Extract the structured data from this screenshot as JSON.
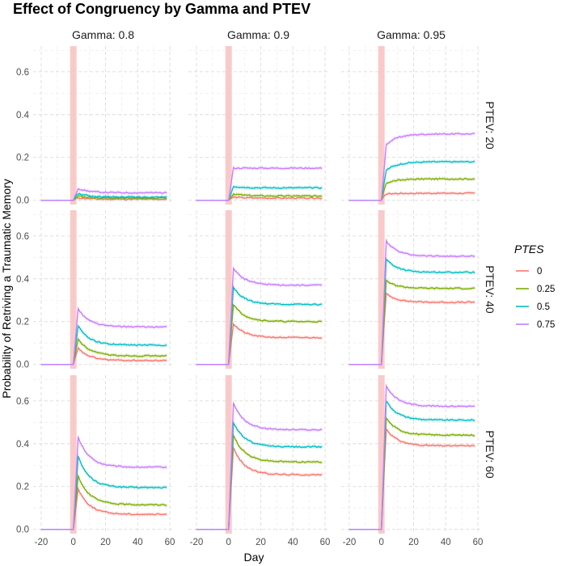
{
  "chart_data": {
    "type": "line",
    "title": "Effect of Congruency by Gamma and PTEV",
    "xlabel": "Day",
    "ylabel": "Probability of Retriving a Traumatic Memory",
    "xlim": [
      -25,
      62
    ],
    "ylim": [
      -0.02,
      0.72
    ],
    "x_ticks": [
      -20,
      0,
      20,
      40,
      60
    ],
    "y_ticks": [
      0.0,
      0.2,
      0.4,
      0.6
    ],
    "x_tick_labels": [
      "-20",
      "0",
      "20",
      "40",
      "60"
    ],
    "y_tick_labels": [
      "0.0",
      "0.2",
      "0.4",
      "0.6"
    ],
    "grid": true,
    "highlight_band": {
      "x": [
        -2,
        2
      ],
      "color": "#f8c4c4"
    },
    "facet_columns": [
      "Gamma: 0.8",
      "Gamma: 0.9",
      "Gamma: 0.95"
    ],
    "facet_rows": [
      "PTEV: 20",
      "PTEV: 40",
      "PTEV: 60"
    ],
    "legend": {
      "title": "PTES",
      "position": "right",
      "entries": [
        "0",
        "0.25",
        "0.5",
        "0.75"
      ]
    },
    "series_colors": [
      "#F8766D",
      "#7CAE00",
      "#00BFC4",
      "#C77CFF"
    ],
    "x_start": -20,
    "event_day": 0,
    "x_end": 58,
    "panels": [
      {
        "row": 0,
        "col": 0,
        "series": [
          {
            "name": "0",
            "peak": 0.012,
            "plateau": 0.005
          },
          {
            "name": "0.25",
            "peak": 0.02,
            "plateau": 0.01
          },
          {
            "name": "0.5",
            "peak": 0.032,
            "plateau": 0.015
          },
          {
            "name": "0.75",
            "peak": 0.055,
            "plateau": 0.035
          }
        ]
      },
      {
        "row": 0,
        "col": 1,
        "series": [
          {
            "name": "0",
            "peak": 0.015,
            "plateau": 0.01
          },
          {
            "name": "0.25",
            "peak": 0.03,
            "plateau": 0.02
          },
          {
            "name": "0.5",
            "peak": 0.065,
            "plateau": 0.058
          },
          {
            "name": "0.75",
            "peak": 0.15,
            "plateau": 0.15
          }
        ]
      },
      {
        "row": 0,
        "col": 2,
        "series": [
          {
            "name": "0",
            "peak": 0.03,
            "plateau": 0.033
          },
          {
            "name": "0.25",
            "peak": 0.08,
            "plateau": 0.1
          },
          {
            "name": "0.5",
            "peak": 0.14,
            "plateau": 0.18
          },
          {
            "name": "0.75",
            "peak": 0.26,
            "plateau": 0.31
          }
        ]
      },
      {
        "row": 1,
        "col": 0,
        "series": [
          {
            "name": "0",
            "peak": 0.075,
            "plateau": 0.018
          },
          {
            "name": "0.25",
            "peak": 0.12,
            "plateau": 0.04
          },
          {
            "name": "0.5",
            "peak": 0.18,
            "plateau": 0.09
          },
          {
            "name": "0.75",
            "peak": 0.26,
            "plateau": 0.175
          }
        ]
      },
      {
        "row": 1,
        "col": 1,
        "series": [
          {
            "name": "0",
            "peak": 0.19,
            "plateau": 0.125
          },
          {
            "name": "0.25",
            "peak": 0.28,
            "plateau": 0.2
          },
          {
            "name": "0.5",
            "peak": 0.36,
            "plateau": 0.28
          },
          {
            "name": "0.75",
            "peak": 0.45,
            "plateau": 0.37
          }
        ]
      },
      {
        "row": 1,
        "col": 2,
        "series": [
          {
            "name": "0",
            "peak": 0.33,
            "plateau": 0.29
          },
          {
            "name": "0.25",
            "peak": 0.39,
            "plateau": 0.355
          },
          {
            "name": "0.5",
            "peak": 0.49,
            "plateau": 0.43
          },
          {
            "name": "0.75",
            "peak": 0.575,
            "plateau": 0.505
          }
        ]
      },
      {
        "row": 2,
        "col": 0,
        "series": [
          {
            "name": "0",
            "peak": 0.19,
            "plateau": 0.07
          },
          {
            "name": "0.25",
            "peak": 0.25,
            "plateau": 0.115
          },
          {
            "name": "0.5",
            "peak": 0.34,
            "plateau": 0.195
          },
          {
            "name": "0.75",
            "peak": 0.43,
            "plateau": 0.29
          }
        ]
      },
      {
        "row": 2,
        "col": 1,
        "series": [
          {
            "name": "0",
            "peak": 0.38,
            "plateau": 0.255
          },
          {
            "name": "0.25",
            "peak": 0.44,
            "plateau": 0.315
          },
          {
            "name": "0.5",
            "peak": 0.5,
            "plateau": 0.385
          },
          {
            "name": "0.75",
            "peak": 0.59,
            "plateau": 0.465
          }
        ]
      },
      {
        "row": 2,
        "col": 2,
        "series": [
          {
            "name": "0",
            "peak": 0.47,
            "plateau": 0.39
          },
          {
            "name": "0.25",
            "peak": 0.52,
            "plateau": 0.44
          },
          {
            "name": "0.5",
            "peak": 0.6,
            "plateau": 0.51
          },
          {
            "name": "0.75",
            "peak": 0.67,
            "plateau": 0.575
          }
        ]
      }
    ]
  }
}
